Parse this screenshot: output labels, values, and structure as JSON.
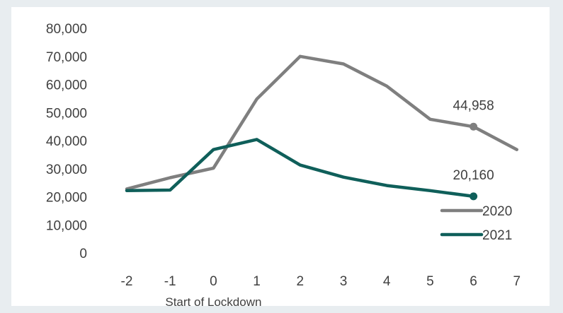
{
  "chart_data": {
    "type": "line",
    "title": "",
    "xlabel": "",
    "ylabel": "",
    "x": [
      -2,
      -1,
      0,
      1,
      2,
      3,
      4,
      5,
      6,
      7
    ],
    "x_tick_labels": [
      "-2",
      "-1",
      "0",
      "1",
      "2",
      "3",
      "4",
      "5",
      "6",
      "7"
    ],
    "ylim": [
      0,
      80000
    ],
    "y_ticks": [
      0,
      10000,
      20000,
      30000,
      40000,
      50000,
      60000,
      70000,
      80000
    ],
    "y_tick_labels": [
      "0",
      "10,000",
      "20,000",
      "30,000",
      "40,000",
      "50,000",
      "60,000",
      "70,000",
      "80,000"
    ],
    "grid": false,
    "legend_position": "bottom-right",
    "series": [
      {
        "name": "2020",
        "color": "#7f7f7f",
        "x": [
          -2,
          -1,
          0,
          1,
          2,
          3,
          4,
          5,
          6,
          7
        ],
        "values": [
          22800,
          26800,
          30200,
          54800,
          70000,
          67300,
          59400,
          47600,
          44958,
          36800
        ]
      },
      {
        "name": "2021",
        "color": "#0f5f5a",
        "x": [
          -2,
          -1,
          0,
          1,
          2,
          3,
          4,
          5,
          6
        ],
        "values": [
          22200,
          22400,
          36800,
          40400,
          31300,
          27000,
          24000,
          22200,
          20160
        ]
      }
    ],
    "annotations": [
      {
        "series": 0,
        "x": 6,
        "text": "44,958"
      },
      {
        "series": 1,
        "x": 6,
        "text": "20,160"
      },
      {
        "x": 0,
        "text": "Start of Lockdown"
      }
    ]
  }
}
